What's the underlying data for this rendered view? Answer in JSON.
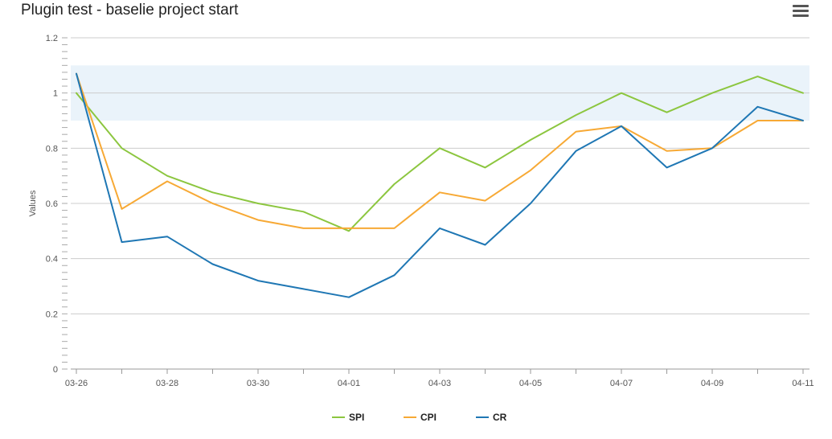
{
  "chart_data": {
    "type": "line",
    "title": "Plugin test - baselie project start",
    "xlabel": "",
    "ylabel": "Values",
    "x": [
      "03-26",
      "03-27",
      "03-28",
      "03-29",
      "03-30",
      "03-31",
      "04-01",
      "04-02",
      "04-03",
      "04-04",
      "04-05",
      "04-06",
      "04-07",
      "04-08",
      "04-09",
      "04-10",
      "04-11"
    ],
    "x_tick_labels": [
      "03-26",
      "03-28",
      "03-30",
      "04-01",
      "04-03",
      "04-05",
      "04-07",
      "04-09",
      "04-11"
    ],
    "y_tick_labels": [
      "0",
      "0.2",
      "0.4",
      "0.6",
      "0.8",
      "1",
      "1.2"
    ],
    "ylim": [
      0,
      1.2
    ],
    "plot_band": {
      "from": 0.9,
      "to": 1.1,
      "color": "#eaf3fa"
    },
    "grid": true,
    "legend_position": "bottom-center",
    "series": [
      {
        "name": "SPI",
        "color": "#8cc63f",
        "values": [
          1.0,
          0.8,
          0.7,
          0.64,
          0.6,
          0.57,
          0.5,
          0.67,
          0.8,
          0.73,
          0.83,
          0.92,
          1.0,
          0.93,
          1.0,
          1.06,
          1.0
        ]
      },
      {
        "name": "CPI",
        "color": "#f7a935",
        "values": [
          1.07,
          0.58,
          0.68,
          0.6,
          0.54,
          0.51,
          0.51,
          0.51,
          0.64,
          0.61,
          0.72,
          0.86,
          0.88,
          0.79,
          0.8,
          0.9,
          0.9
        ]
      },
      {
        "name": "CR",
        "color": "#1f77b4",
        "values": [
          1.07,
          0.46,
          0.48,
          0.38,
          0.32,
          0.29,
          0.26,
          0.34,
          0.51,
          0.45,
          0.6,
          0.79,
          0.88,
          0.73,
          0.8,
          0.95,
          0.9
        ]
      }
    ]
  },
  "toolbar": {
    "menu_icon": "hamburger-menu-icon"
  }
}
